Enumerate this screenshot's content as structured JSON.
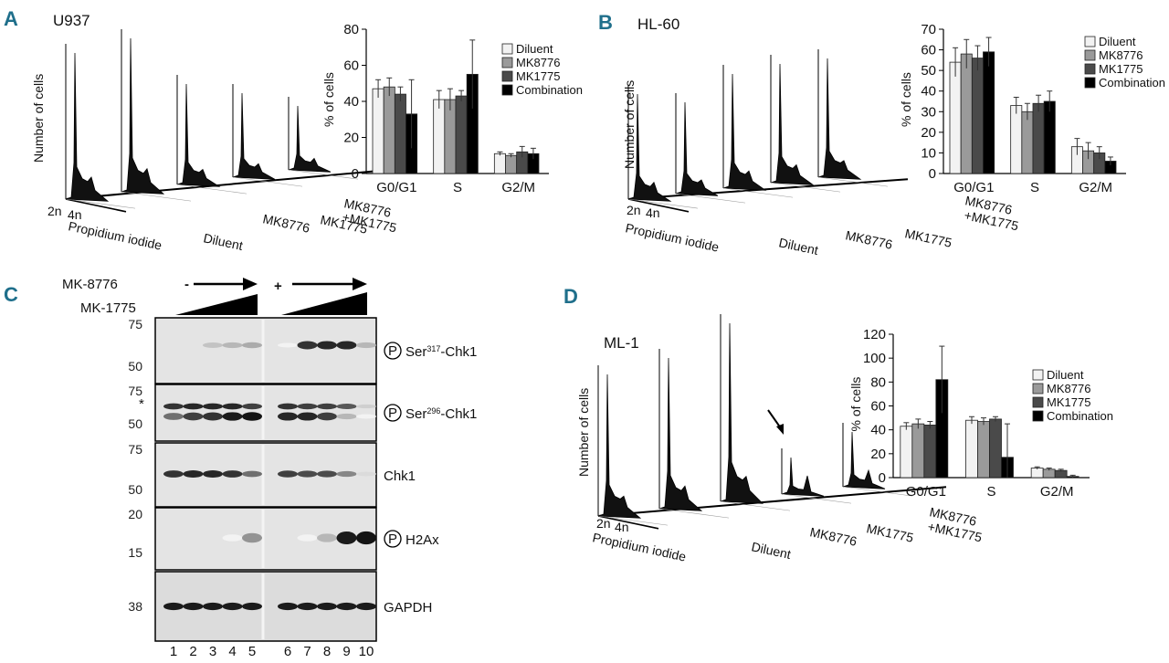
{
  "figure": {
    "panel_labels": [
      "A",
      "B",
      "C",
      "D"
    ],
    "colors": {
      "label": "#1f6f8b",
      "diluent": "#f2f2f2",
      "mk8776": "#9a9a9a",
      "mk1775": "#4a4a4a",
      "combination": "#000000"
    }
  },
  "panelA": {
    "cell_line": "U937",
    "ylabel": "Number of cells",
    "xlabel": "Propidium iodide",
    "ploidy_2n": "2n",
    "ploidy_4n": "4n",
    "conditions": [
      "Diluent",
      "MK8776",
      "MK1775",
      "MK8776",
      "+MK1775"
    ]
  },
  "panelB": {
    "cell_line": "HL-60",
    "ylabel": "Number of cells",
    "xlabel": "Propidium iodide",
    "ploidy_2n": "2n",
    "ploidy_4n": "4n",
    "conditions": [
      "Diluent",
      "MK8776",
      "MK1775",
      "MK8776",
      "+MK1775"
    ]
  },
  "panelD": {
    "cell_line": "ML-1",
    "ylabel": "Number of cells",
    "xlabel": "Propidium iodide",
    "ploidy_2n": "2n",
    "ploidy_4n": "4n",
    "conditions": [
      "Diluent",
      "MK8776",
      "MK1775",
      "MK8776",
      "+MK1775"
    ]
  },
  "panelC": {
    "mk8776_label": "MK-8776",
    "mk1775_label": "MK-1775",
    "minus": "-",
    "plus": "+",
    "blots": [
      {
        "label_sup": "317",
        "pre": "Ser",
        "post": "-Chk1",
        "phospho": true,
        "markers": [
          "75",
          "50"
        ]
      },
      {
        "label_sup": "296",
        "pre": "Ser",
        "post": "-Chk1",
        "phospho": true,
        "markers": [
          "75",
          "50"
        ]
      },
      {
        "label_sup": "",
        "pre": "Chk1",
        "post": "",
        "phospho": false,
        "markers": [
          "75",
          "50"
        ]
      },
      {
        "label_sup": "",
        "pre": "H2Ax",
        "post": "",
        "phospho": true,
        "markers": [
          "20",
          "15"
        ]
      },
      {
        "label_sup": "",
        "pre": "GAPDH",
        "post": "",
        "phospho": false,
        "markers": [
          "38"
        ]
      }
    ],
    "phospho_symbol": "P",
    "star": "*",
    "lanes": [
      "1",
      "2",
      "3",
      "4",
      "5",
      "6",
      "7",
      "8",
      "9",
      "10"
    ]
  },
  "chart_data": [
    {
      "type": "bar",
      "title": "U937",
      "xlabel": "",
      "ylabel": "% of cells",
      "categories": [
        "G0/G1",
        "S",
        "G2/M"
      ],
      "series": [
        {
          "name": "Diluent",
          "values": [
            47,
            41,
            11
          ]
        },
        {
          "name": "MK8776",
          "values": [
            48,
            41,
            10
          ]
        },
        {
          "name": "MK1775",
          "values": [
            44,
            43,
            12
          ]
        },
        {
          "name": "Combination",
          "values": [
            33,
            55,
            11
          ]
        }
      ],
      "errors": [
        [
          5,
          5,
          1
        ],
        [
          5,
          6,
          1
        ],
        [
          4,
          3,
          3
        ],
        [
          19,
          19,
          3
        ]
      ],
      "ylim": [
        0,
        80
      ],
      "yticks": [
        0,
        20,
        40,
        60,
        80
      ]
    },
    {
      "type": "bar",
      "title": "HL-60",
      "xlabel": "",
      "ylabel": "% of cells",
      "categories": [
        "G0/G1",
        "S",
        "G2/M"
      ],
      "series": [
        {
          "name": "Diluent",
          "values": [
            54,
            33,
            13
          ]
        },
        {
          "name": "MK8776",
          "values": [
            58,
            30,
            11
          ]
        },
        {
          "name": "MK1775",
          "values": [
            56,
            34,
            10
          ]
        },
        {
          "name": "Combination",
          "values": [
            59,
            35,
            6
          ]
        }
      ],
      "errors": [
        [
          7,
          4,
          4
        ],
        [
          7,
          4,
          4
        ],
        [
          6,
          4,
          3
        ],
        [
          7,
          5,
          2
        ]
      ],
      "ylim": [
        0,
        70
      ],
      "yticks": [
        0,
        10,
        20,
        30,
        40,
        50,
        60,
        70
      ]
    },
    {
      "type": "bar",
      "title": "ML-1",
      "xlabel": "",
      "ylabel": "% of cells",
      "categories": [
        "G0/G1",
        "S",
        "G2/M"
      ],
      "series": [
        {
          "name": "Diluent",
          "values": [
            43,
            48,
            8
          ]
        },
        {
          "name": "MK8776",
          "values": [
            45,
            47,
            7
          ]
        },
        {
          "name": "MK1775",
          "values": [
            44,
            49,
            6
          ]
        },
        {
          "name": "Combination",
          "values": [
            82,
            17,
            1
          ]
        }
      ],
      "errors": [
        [
          3,
          3,
          1
        ],
        [
          4,
          3,
          1
        ],
        [
          3,
          2,
          1
        ],
        [
          28,
          28,
          1
        ]
      ],
      "ylim": [
        0,
        120
      ],
      "yticks": [
        0,
        20,
        40,
        60,
        80,
        100,
        120
      ]
    }
  ]
}
